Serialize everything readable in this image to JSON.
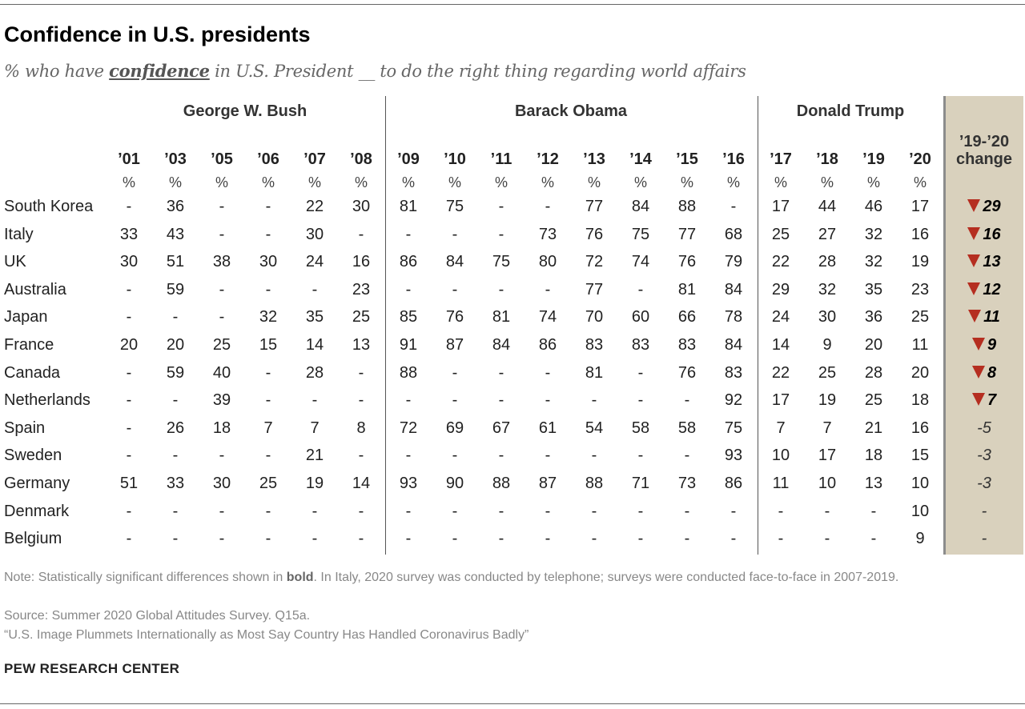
{
  "title": "Confidence in U.S. presidents",
  "subtitle": {
    "pre": "% who have ",
    "emph": "confidence",
    "post": " in U.S. President __ to do the right thing regarding world affairs"
  },
  "chart_data": {
    "type": "table",
    "groups": [
      {
        "label": "George W. Bush",
        "span": 6
      },
      {
        "label": "Barack Obama",
        "span": 8
      },
      {
        "label": "Donald Trump",
        "span": 4
      }
    ],
    "years": [
      "’01",
      "’03",
      "’05",
      "’06",
      "’07",
      "’08",
      "’09",
      "’10",
      "’11",
      "’12",
      "’13",
      "’14",
      "’15",
      "’16",
      "’17",
      "’18",
      "’19",
      "’20"
    ],
    "unit": "%",
    "change_header": [
      "’19-’20",
      "change"
    ],
    "change_colors": {
      "decrease_marker": "#b52e20",
      "column_bg": "#d9d1bd"
    },
    "rows": [
      {
        "country": "South Korea",
        "values": [
          "-",
          "36",
          "-",
          "-",
          "22",
          "30",
          "81",
          "75",
          "-",
          "-",
          "77",
          "84",
          "88",
          "-",
          "17",
          "44",
          "46",
          "17"
        ],
        "change": {
          "value": "29",
          "significant": true,
          "direction": "down"
        }
      },
      {
        "country": "Italy",
        "values": [
          "33",
          "43",
          "-",
          "-",
          "30",
          "-",
          "-",
          "-",
          "-",
          "73",
          "76",
          "75",
          "77",
          "68",
          "25",
          "27",
          "32",
          "16"
        ],
        "change": {
          "value": "16",
          "significant": true,
          "direction": "down"
        }
      },
      {
        "country": "UK",
        "values": [
          "30",
          "51",
          "38",
          "30",
          "24",
          "16",
          "86",
          "84",
          "75",
          "80",
          "72",
          "74",
          "76",
          "79",
          "22",
          "28",
          "32",
          "19"
        ],
        "change": {
          "value": "13",
          "significant": true,
          "direction": "down"
        }
      },
      {
        "country": "Australia",
        "values": [
          "-",
          "59",
          "-",
          "-",
          "-",
          "23",
          "-",
          "-",
          "-",
          "-",
          "77",
          "-",
          "81",
          "84",
          "29",
          "32",
          "35",
          "23"
        ],
        "change": {
          "value": "12",
          "significant": true,
          "direction": "down"
        }
      },
      {
        "country": "Japan",
        "values": [
          "-",
          "-",
          "-",
          "32",
          "35",
          "25",
          "85",
          "76",
          "81",
          "74",
          "70",
          "60",
          "66",
          "78",
          "24",
          "30",
          "36",
          "25"
        ],
        "change": {
          "value": "11",
          "significant": true,
          "direction": "down"
        }
      },
      {
        "country": "France",
        "values": [
          "20",
          "20",
          "25",
          "15",
          "14",
          "13",
          "91",
          "87",
          "84",
          "86",
          "83",
          "83",
          "83",
          "84",
          "14",
          "9",
          "20",
          "11"
        ],
        "change": {
          "value": "9",
          "significant": true,
          "direction": "down"
        }
      },
      {
        "country": "Canada",
        "values": [
          "-",
          "59",
          "40",
          "-",
          "28",
          "-",
          "88",
          "-",
          "-",
          "-",
          "81",
          "-",
          "76",
          "83",
          "22",
          "25",
          "28",
          "20"
        ],
        "change": {
          "value": "8",
          "significant": true,
          "direction": "down"
        }
      },
      {
        "country": "Netherlands",
        "values": [
          "-",
          "-",
          "39",
          "-",
          "-",
          "-",
          "-",
          "-",
          "-",
          "-",
          "-",
          "-",
          "-",
          "92",
          "17",
          "19",
          "25",
          "18"
        ],
        "change": {
          "value": "7",
          "significant": true,
          "direction": "down"
        }
      },
      {
        "country": "Spain",
        "values": [
          "-",
          "26",
          "18",
          "7",
          "7",
          "8",
          "72",
          "69",
          "67",
          "61",
          "54",
          "58",
          "58",
          "75",
          "7",
          "7",
          "21",
          "16"
        ],
        "change": {
          "value": "-5",
          "significant": false,
          "direction": "none"
        }
      },
      {
        "country": "Sweden",
        "values": [
          "-",
          "-",
          "-",
          "-",
          "21",
          "-",
          "-",
          "-",
          "-",
          "-",
          "-",
          "-",
          "-",
          "93",
          "10",
          "17",
          "18",
          "15"
        ],
        "change": {
          "value": "-3",
          "significant": false,
          "direction": "none"
        }
      },
      {
        "country": "Germany",
        "values": [
          "51",
          "33",
          "30",
          "25",
          "19",
          "14",
          "93",
          "90",
          "88",
          "87",
          "88",
          "71",
          "73",
          "86",
          "11",
          "10",
          "13",
          "10"
        ],
        "change": {
          "value": "-3",
          "significant": false,
          "direction": "none"
        }
      },
      {
        "country": "Denmark",
        "values": [
          "-",
          "-",
          "-",
          "-",
          "-",
          "-",
          "-",
          "-",
          "-",
          "-",
          "-",
          "-",
          "-",
          "-",
          "-",
          "-",
          "-",
          "10"
        ],
        "change": {
          "value": "-",
          "significant": false,
          "direction": "none"
        }
      },
      {
        "country": "Belgium",
        "values": [
          "-",
          "-",
          "-",
          "-",
          "-",
          "-",
          "-",
          "-",
          "-",
          "-",
          "-",
          "-",
          "-",
          "-",
          "-",
          "-",
          "-",
          "9"
        ],
        "change": {
          "value": "-",
          "significant": false,
          "direction": "none"
        }
      }
    ]
  },
  "notes": {
    "note_pre": "Note: Statistically significant differences shown in ",
    "note_bold": "bold",
    "note_post": ". In Italy, 2020 survey was conducted by telephone; surveys were conducted face-to-face in 2007-2019.",
    "source": "Source: Summer 2020 Global Attitudes Survey. Q15a.",
    "report": "“U.S. Image Plummets Internationally as Most Say Country Has Handled Coronavirus Badly”"
  },
  "logo": "PEW RESEARCH CENTER"
}
